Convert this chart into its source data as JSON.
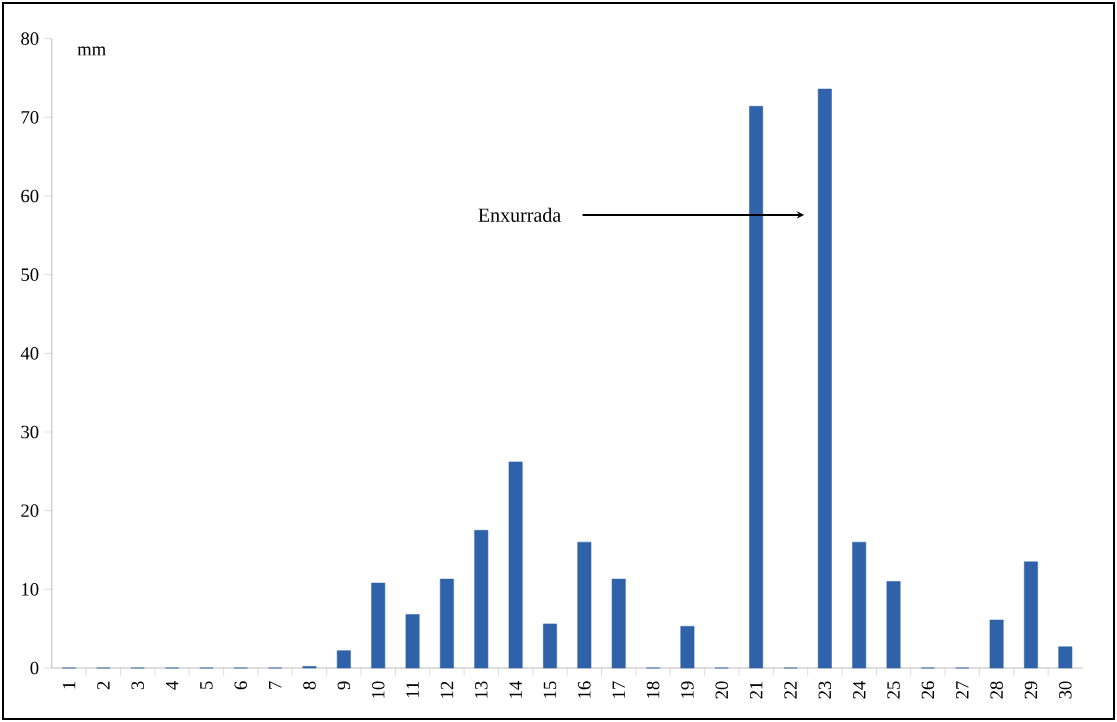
{
  "chart_data": {
    "type": "bar",
    "ylabel": "mm",
    "categories": [
      "1",
      "2",
      "3",
      "4",
      "5",
      "6",
      "7",
      "8",
      "9",
      "10",
      "11",
      "12",
      "13",
      "14",
      "15",
      "16",
      "17",
      "18",
      "19",
      "20",
      "21",
      "22",
      "23",
      "24",
      "25",
      "26",
      "27",
      "28",
      "29",
      "30"
    ],
    "values": [
      0,
      0,
      0,
      0,
      0,
      0,
      0,
      0.2,
      2.2,
      10.8,
      6.8,
      11.3,
      17.5,
      26.2,
      5.6,
      16.0,
      11.3,
      0,
      5.3,
      0,
      71.4,
      0,
      73.6,
      16.0,
      11.0,
      0,
      0,
      6.1,
      13.5,
      2.7
    ],
    "color": "#2f62a8",
    "ylim": [
      0,
      80
    ],
    "yticks": [
      0,
      10,
      20,
      30,
      40,
      50,
      60,
      70,
      80
    ],
    "grid": false,
    "annotations": [
      "Enxurrada"
    ]
  }
}
